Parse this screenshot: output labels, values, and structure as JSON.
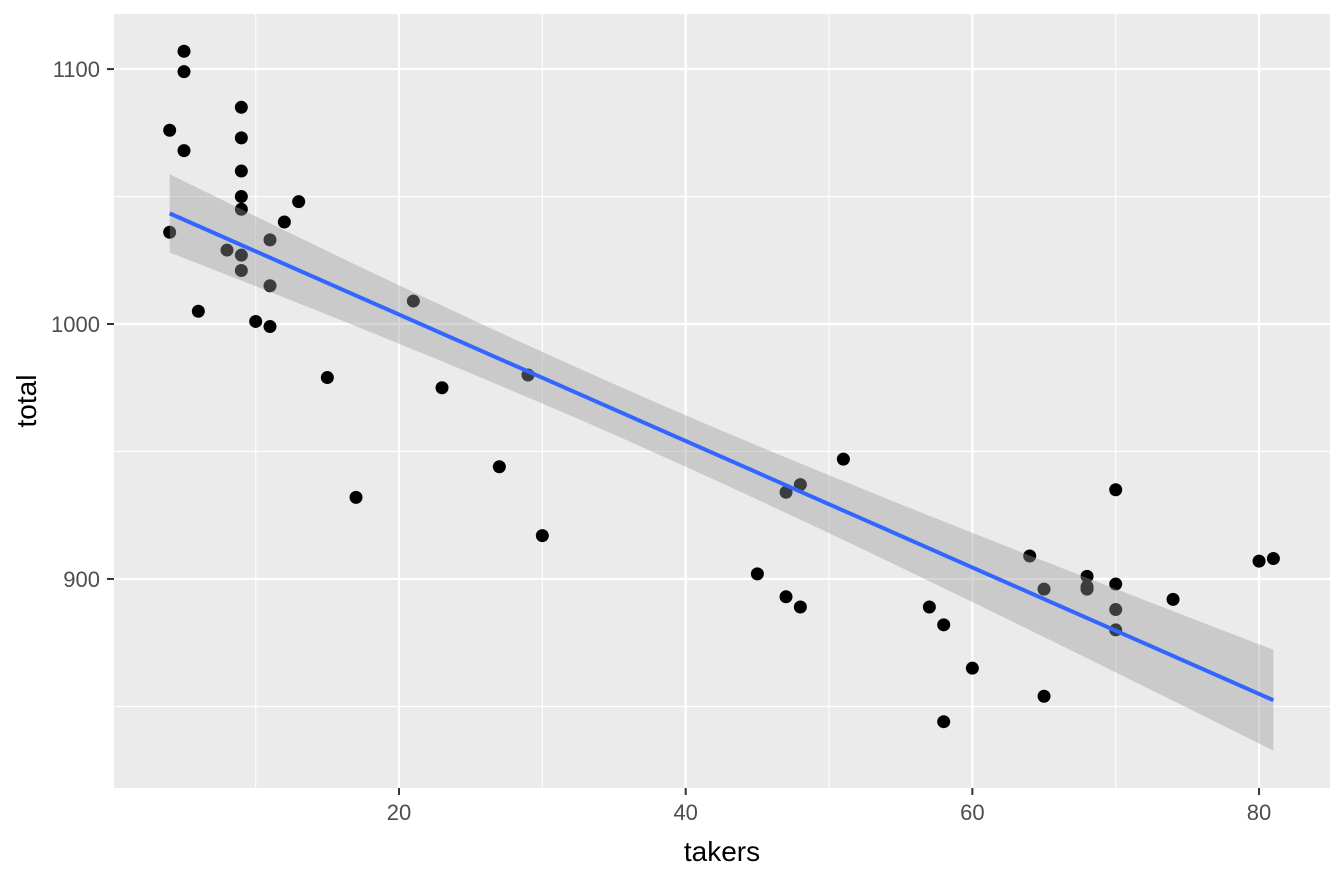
{
  "chart_data": {
    "type": "scatter",
    "title": "",
    "xlabel": "takers",
    "ylabel": "total",
    "points": [
      [
        8,
        1029
      ],
      [
        47,
        934
      ],
      [
        27,
        944
      ],
      [
        6,
        1005
      ],
      [
        45,
        902
      ],
      [
        29,
        980
      ],
      [
        81,
        908
      ],
      [
        68,
        897
      ],
      [
        48,
        889
      ],
      [
        65,
        854
      ],
      [
        57,
        889
      ],
      [
        15,
        979
      ],
      [
        13,
        1048
      ],
      [
        58,
        882
      ],
      [
        5,
        1099
      ],
      [
        9,
        1060
      ],
      [
        11,
        999
      ],
      [
        9,
        1021
      ],
      [
        68,
        896
      ],
      [
        64,
        909
      ],
      [
        80,
        907
      ],
      [
        11,
        1033
      ],
      [
        9,
        1085
      ],
      [
        4,
        1036
      ],
      [
        9,
        1045
      ],
      [
        21,
        1009
      ],
      [
        9,
        1050
      ],
      [
        30,
        917
      ],
      [
        70,
        935
      ],
      [
        70,
        898
      ],
      [
        11,
        1015
      ],
      [
        74,
        892
      ],
      [
        60,
        865
      ],
      [
        5,
        1107
      ],
      [
        23,
        975
      ],
      [
        9,
        1027
      ],
      [
        51,
        947
      ],
      [
        70,
        880
      ],
      [
        70,
        888
      ],
      [
        58,
        844
      ],
      [
        5,
        1068
      ],
      [
        12,
        1040
      ],
      [
        47,
        893
      ],
      [
        4,
        1076
      ],
      [
        68,
        901
      ],
      [
        65,
        896
      ],
      [
        48,
        937
      ],
      [
        17,
        932
      ],
      [
        9,
        1073
      ],
      [
        10,
        1001
      ]
    ],
    "x_ticks": [
      20,
      40,
      60,
      80
    ],
    "x_minor_ticks": [
      10,
      30,
      50,
      70
    ],
    "y_ticks": [
      900,
      1000,
      1100
    ],
    "y_minor_ticks": [
      850,
      950,
      1050
    ],
    "xlim": [
      0.116,
      84.95
    ],
    "ylim": [
      818.0,
      1121.6
    ],
    "grid": "major+minor",
    "legend": "none",
    "smooth": {
      "method": "lm",
      "se": true,
      "level": 0.95,
      "t_value": 2.0106
    }
  },
  "colors": {
    "background": "#FFFFFF",
    "panel": "#EBEBEB",
    "grid": "#FFFFFF",
    "point": "#000000",
    "smooth_line": "#3366FF",
    "band": "#999999",
    "band_alpha": 0.4,
    "axis_text": "#4D4D4D",
    "axis_title": "#000000",
    "tick_mark": "#333333"
  }
}
